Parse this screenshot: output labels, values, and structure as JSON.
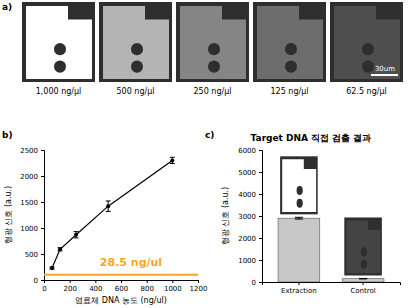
{
  "panels": [
    "a)",
    "b)",
    "c)"
  ],
  "images": {
    "labels": [
      "1,000 ng/μl",
      "500 ng/μl",
      "250 ng/μl",
      "125 ng/μl",
      "62.5 ng/μl"
    ],
    "scale_bar": "30um"
  },
  "chart_data": [
    {
      "type": "line",
      "x": [
        62.5,
        125,
        250,
        500,
        1000
      ],
      "values": [
        230,
        590,
        870,
        1420,
        2300
      ],
      "errors": [
        20,
        30,
        60,
        100,
        60
      ],
      "color": "#000000",
      "marker": "circle",
      "xlabel": "염료체 DNA 농도 (ng/ul)",
      "ylabel": "형광 신호 (a.u.)",
      "xlim": [
        0,
        1200
      ],
      "xticks": [
        0,
        200,
        400,
        600,
        800,
        1000,
        1200
      ],
      "ylim": [
        0,
        2500
      ],
      "yticks": [
        0,
        500,
        1000,
        1500,
        2000,
        2500
      ],
      "reference_line": {
        "value": 100,
        "color": "#f5a623"
      },
      "annotations": [
        {
          "text": "28.5 ng/ul",
          "color": "#f5a623"
        }
      ],
      "grid": false
    },
    {
      "type": "bar",
      "title": "Target DNA 직접 검출 결과",
      "categories": [
        "Extraction",
        "Control"
      ],
      "values": [
        2900,
        150
      ],
      "errors": [
        40,
        10
      ],
      "colors": [
        "#c8c8c8",
        "#c8c8c8"
      ],
      "ylabel": "형광 신호 (a.u.)",
      "ylim": [
        0,
        6000
      ],
      "yticks": [
        0,
        1000,
        2000,
        3000,
        4000,
        5000,
        6000
      ],
      "grid": false
    }
  ]
}
